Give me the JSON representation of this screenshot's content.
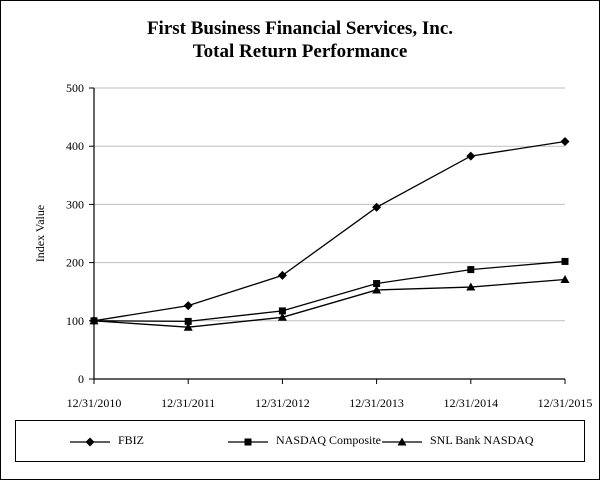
{
  "chart_data": {
    "type": "line",
    "title": "First Business Financial Services, Inc.",
    "subtitle": "Total Return Performance",
    "xlabel": "",
    "ylabel": "Index Value",
    "categories": [
      "12/31/2010",
      "12/31/2011",
      "12/31/2012",
      "12/31/2013",
      "12/31/2014",
      "12/31/2015"
    ],
    "ylim": [
      0,
      500
    ],
    "yticks": [
      0,
      100,
      200,
      300,
      400,
      500
    ],
    "grid": true,
    "legend_position": "bottom",
    "series": [
      {
        "name": "FBIZ",
        "marker": "diamond",
        "color": "#000000",
        "values": [
          100,
          126,
          178,
          295,
          383,
          408
        ]
      },
      {
        "name": "NASDAQ Composite",
        "marker": "square",
        "color": "#000000",
        "values": [
          100,
          99,
          117,
          164,
          188,
          202
        ]
      },
      {
        "name": "SNL Bank NASDAQ",
        "marker": "triangle",
        "color": "#000000",
        "values": [
          100,
          89,
          106,
          153,
          158,
          171
        ]
      }
    ]
  }
}
